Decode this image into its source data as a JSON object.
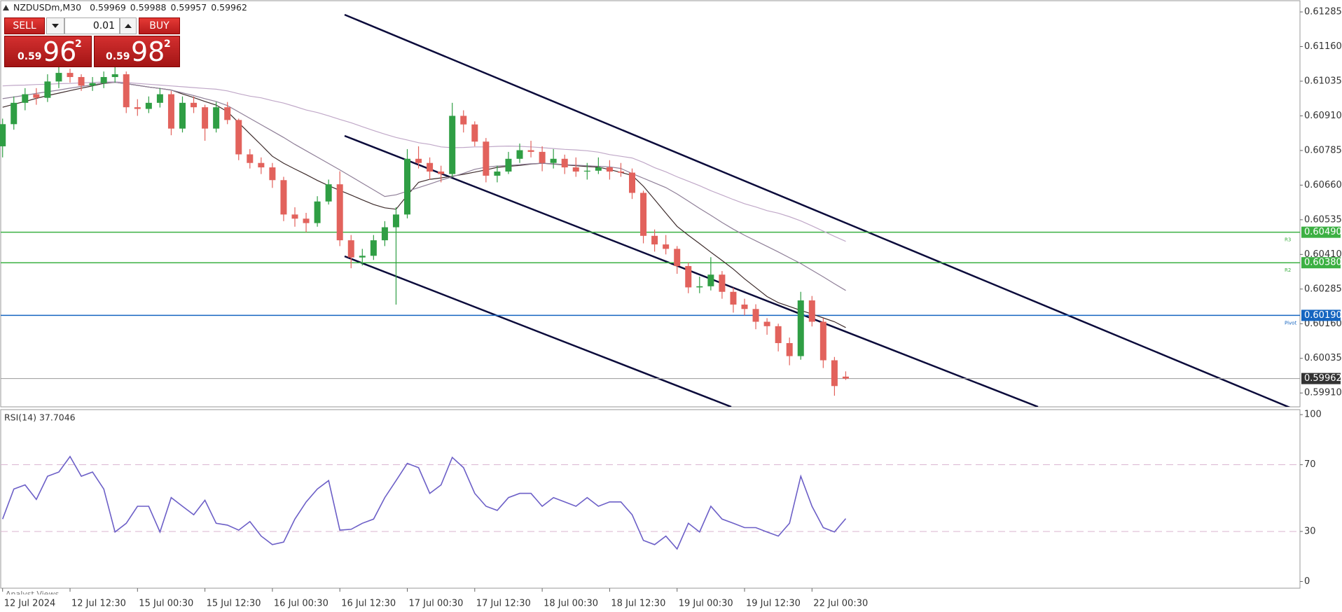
{
  "header": {
    "symbol": "NZDUSDm,M30",
    "ohlc": [
      "0.59969",
      "0.59988",
      "0.59957",
      "0.59962"
    ]
  },
  "trade_panel": {
    "sell": "SELL",
    "buy": "BUY",
    "volume": "0.01",
    "bid": {
      "lead": "0.59",
      "big": "96",
      "point": "2"
    },
    "ask": {
      "lead": "0.59",
      "big": "98",
      "point": "2"
    }
  },
  "footer_tab": "Analyst Views",
  "chart_data": [
    {
      "type": "candlestick",
      "categories": [
        "12 Jul 2024",
        null,
        null,
        null,
        null,
        null,
        "12 Jul 12:30",
        null,
        null,
        null,
        null,
        null,
        "15 Jul 00:30",
        null,
        null,
        null,
        null,
        null,
        "15 Jul 12:30",
        null,
        null,
        null,
        null,
        null,
        "16 Jul 00:30",
        null,
        null,
        null,
        null,
        null,
        "16 Jul 12:30",
        null,
        null,
        null,
        null,
        null,
        "17 Jul 00:30",
        null,
        null,
        null,
        null,
        null,
        "17 Jul 12:30",
        null,
        null,
        null,
        null,
        null,
        "18 Jul 00:30",
        null,
        null,
        null,
        null,
        null,
        "18 Jul 12:30",
        null,
        null,
        null,
        null,
        null,
        "19 Jul 00:30",
        null,
        null,
        null,
        null,
        null,
        "19 Jul 12:30",
        null,
        null,
        null,
        null,
        null,
        "22 Jul 00:30",
        null,
        null,
        null
      ],
      "ohlc": [
        [
          0.608,
          0.609,
          0.6076,
          0.6088
        ],
        [
          0.6088,
          0.6098,
          0.6086,
          0.60957
        ],
        [
          0.60957,
          0.6101,
          0.6093,
          0.60988
        ],
        [
          0.60988,
          0.6101,
          0.6095,
          0.60975
        ],
        [
          0.60975,
          0.6106,
          0.6096,
          0.61034
        ],
        [
          0.61034,
          0.6109,
          0.6101,
          0.61065
        ],
        [
          0.61065,
          0.6108,
          0.6103,
          0.6105
        ],
        [
          0.6105,
          0.6106,
          0.61,
          0.61019
        ],
        [
          0.61019,
          0.6105,
          0.61,
          0.61028
        ],
        [
          0.61028,
          0.6107,
          0.6101,
          0.6105
        ],
        [
          0.6105,
          0.611,
          0.6103,
          0.6106
        ],
        [
          0.6106,
          0.6107,
          0.6092,
          0.60941
        ],
        [
          0.60941,
          0.6097,
          0.6091,
          0.60935
        ],
        [
          0.60935,
          0.6098,
          0.6092,
          0.60957
        ],
        [
          0.60957,
          0.6101,
          0.6094,
          0.60988
        ],
        [
          0.60988,
          0.61,
          0.6084,
          0.60864
        ],
        [
          0.60864,
          0.6098,
          0.6085,
          0.60957
        ],
        [
          0.60957,
          0.6098,
          0.6092,
          0.60941
        ],
        [
          0.60941,
          0.6095,
          0.6082,
          0.60864
        ],
        [
          0.60864,
          0.6096,
          0.6085,
          0.60941
        ],
        [
          0.60941,
          0.6096,
          0.6088,
          0.60895
        ],
        [
          0.60895,
          0.609,
          0.6075,
          0.60771
        ],
        [
          0.60771,
          0.6079,
          0.6072,
          0.6074
        ],
        [
          0.6074,
          0.6076,
          0.607,
          0.60724
        ],
        [
          0.60724,
          0.6074,
          0.6065,
          0.60678
        ],
        [
          0.60678,
          0.6069,
          0.6053,
          0.60554
        ],
        [
          0.60554,
          0.6058,
          0.6051,
          0.60539
        ],
        [
          0.60539,
          0.6056,
          0.6049,
          0.60523
        ],
        [
          0.60523,
          0.6062,
          0.6051,
          0.60601
        ],
        [
          0.60601,
          0.6068,
          0.6059,
          0.60663
        ],
        [
          0.60663,
          0.6071,
          0.6044,
          0.60461
        ],
        [
          0.60461,
          0.6048,
          0.6036,
          0.60399
        ],
        [
          0.60399,
          0.6043,
          0.6037,
          0.60405
        ],
        [
          0.60405,
          0.6048,
          0.6039,
          0.60461
        ],
        [
          0.60461,
          0.6053,
          0.6044,
          0.60508
        ],
        [
          0.60508,
          0.6058,
          0.60229,
          0.60554
        ],
        [
          0.60554,
          0.6079,
          0.6054,
          0.60755
        ],
        [
          0.60755,
          0.608,
          0.6072,
          0.6074
        ],
        [
          0.6074,
          0.6076,
          0.6068,
          0.60709
        ],
        [
          0.60709,
          0.6073,
          0.6067,
          0.607
        ],
        [
          0.607,
          0.60957,
          0.6069,
          0.6091
        ],
        [
          0.6091,
          0.6093,
          0.6085,
          0.60879
        ],
        [
          0.60879,
          0.6089,
          0.608,
          0.60817
        ],
        [
          0.60817,
          0.6083,
          0.6067,
          0.60694
        ],
        [
          0.60694,
          0.6073,
          0.6067,
          0.60709
        ],
        [
          0.60709,
          0.6078,
          0.607,
          0.60755
        ],
        [
          0.60755,
          0.6081,
          0.6074,
          0.60786
        ],
        [
          0.60786,
          0.6082,
          0.6076,
          0.6078
        ],
        [
          0.6078,
          0.608,
          0.6071,
          0.6074
        ],
        [
          0.6074,
          0.6079,
          0.6072,
          0.60755
        ],
        [
          0.60755,
          0.6077,
          0.607,
          0.60724
        ],
        [
          0.60724,
          0.6076,
          0.6069,
          0.60709
        ],
        [
          0.60709,
          0.6074,
          0.6068,
          0.60712
        ],
        [
          0.60712,
          0.6076,
          0.607,
          0.60724
        ],
        [
          0.60724,
          0.6075,
          0.6068,
          0.60709
        ],
        [
          0.60709,
          0.6074,
          0.6069,
          0.60705
        ],
        [
          0.60705,
          0.6072,
          0.6061,
          0.60632
        ],
        [
          0.60632,
          0.6064,
          0.6045,
          0.60477
        ],
        [
          0.60477,
          0.605,
          0.6042,
          0.60446
        ],
        [
          0.60446,
          0.6048,
          0.6041,
          0.6043
        ],
        [
          0.6043,
          0.6044,
          0.6034,
          0.60368
        ],
        [
          0.60368,
          0.6038,
          0.6027,
          0.60291
        ],
        [
          0.60291,
          0.6033,
          0.6027,
          0.60295
        ],
        [
          0.60295,
          0.604,
          0.6028,
          0.60337
        ],
        [
          0.60337,
          0.6035,
          0.6025,
          0.60275
        ],
        [
          0.60275,
          0.6029,
          0.602,
          0.60229
        ],
        [
          0.60229,
          0.6025,
          0.6019,
          0.60213
        ],
        [
          0.60213,
          0.6023,
          0.6014,
          0.60167
        ],
        [
          0.60167,
          0.6018,
          0.6012,
          0.60151
        ],
        [
          0.60151,
          0.6016,
          0.6006,
          0.6009
        ],
        [
          0.6009,
          0.6011,
          0.6001,
          0.60043
        ],
        [
          0.60043,
          0.60275,
          0.6003,
          0.60244
        ],
        [
          0.60244,
          0.6026,
          0.6015,
          0.60167
        ],
        [
          0.60167,
          0.6018,
          0.6,
          0.60028
        ],
        [
          0.60028,
          0.6004,
          0.599,
          0.59935
        ],
        [
          0.59969,
          0.59988,
          0.59957,
          0.59962
        ]
      ],
      "up_color": "#2f9e44",
      "down_color": "#e2625c",
      "ylim": [
        0.5986,
        0.61328
      ],
      "yticks": [
        0.61285,
        {
          "value": 0.6116,
          "label": "0.61160"
        },
        0.61035,
        {
          "value": 0.6091,
          "label": "0.60910"
        },
        0.60785,
        {
          "value": 0.6066,
          "label": "0.60660"
        },
        0.60535,
        {
          "value": 0.6041,
          "label": "0.60410"
        },
        0.60285,
        {
          "value": 0.6016,
          "label": "0.60160"
        },
        0.60035,
        {
          "value": 0.5991,
          "label": "0.59910"
        }
      ],
      "series": [
        {
          "color": "#3d2b2b",
          "values": [
            0.60941,
            0.60952,
            0.60962,
            0.60973,
            0.60983,
            0.60992,
            0.61001,
            0.6101,
            0.61018,
            0.61027,
            0.61031,
            0.61026,
            0.6102,
            0.61014,
            0.61009,
            0.61003,
            0.60989,
            0.60976,
            0.60962,
            0.60949,
            0.60925,
            0.60885,
            0.60845,
            0.60805,
            0.60764,
            0.60739,
            0.60718,
            0.60698,
            0.60677,
            0.60658,
            0.60641,
            0.60624,
            0.60607,
            0.6059,
            0.60578,
            0.60573,
            0.60623,
            0.6067,
            0.60681,
            0.60686,
            0.60692,
            0.60699,
            0.60707,
            0.60715,
            0.60724,
            0.60728,
            0.60731,
            0.60736,
            0.60739,
            0.60736,
            0.60733,
            0.6073,
            0.60727,
            0.60725,
            0.60716,
            0.60706,
            0.60695,
            0.60656,
            0.60608,
            0.60559,
            0.60511,
            0.60479,
            0.60449,
            0.60418,
            0.60388,
            0.60357,
            0.60322,
            0.6029,
            0.60258,
            0.60236,
            0.60222,
            0.60208,
            0.60195,
            0.60181,
            0.60167,
            0.60146
          ]
        },
        {
          "color": "#8f7f98",
          "values": [
            0.60972,
            0.60978,
            0.60984,
            0.60991,
            0.60997,
            0.61003,
            0.6101,
            0.61016,
            0.61022,
            0.61029,
            0.61031,
            0.61026,
            0.6102,
            0.61014,
            0.61009,
            0.61003,
            0.60993,
            0.60983,
            0.60972,
            0.60962,
            0.60947,
            0.60924,
            0.60901,
            0.60878,
            0.60855,
            0.60832,
            0.60807,
            0.60784,
            0.60761,
            0.60738,
            0.60715,
            0.60691,
            0.60667,
            0.60643,
            0.60619,
            0.60625,
            0.60638,
            0.60651,
            0.60664,
            0.60678,
            0.6069,
            0.60703,
            0.60717,
            0.60725,
            0.60729,
            0.60731,
            0.60734,
            0.60737,
            0.60739,
            0.60737,
            0.60734,
            0.60732,
            0.6073,
            0.60728,
            0.60726,
            0.6072,
            0.60702,
            0.60685,
            0.60668,
            0.60651,
            0.60628,
            0.60602,
            0.60576,
            0.60551,
            0.60525,
            0.60501,
            0.60479,
            0.60459,
            0.60439,
            0.60419,
            0.60398,
            0.60377,
            0.60353,
            0.60329,
            0.60304,
            0.6028
          ]
        },
        {
          "color": "#c0a8c8",
          "values": [
            0.61018,
            0.6102,
            0.61021,
            0.61023,
            0.61024,
            0.61026,
            0.61027,
            0.61029,
            0.6103,
            0.61032,
            0.61033,
            0.6103,
            0.61027,
            0.61024,
            0.61021,
            0.61018,
            0.61015,
            0.61012,
            0.61009,
            0.61006,
            0.61,
            0.6099,
            0.60981,
            0.60975,
            0.60965,
            0.60956,
            0.60944,
            0.60931,
            0.60922,
            0.6091,
            0.60897,
            0.60885,
            0.60871,
            0.60857,
            0.60844,
            0.60832,
            0.60823,
            0.60813,
            0.60807,
            0.60798,
            0.60795,
            0.60796,
            0.60798,
            0.60798,
            0.608,
            0.60801,
            0.608,
            0.60798,
            0.60795,
            0.60792,
            0.60789,
            0.60787,
            0.60784,
            0.60779,
            0.6077,
            0.60764,
            0.60758,
            0.60742,
            0.60723,
            0.60708,
            0.6069,
            0.60674,
            0.60658,
            0.6064,
            0.60624,
            0.60608,
            0.60593,
            0.60581,
            0.60568,
            0.60559,
            0.60546,
            0.60531,
            0.60513,
            0.60494,
            0.60475,
            0.60457
          ]
        }
      ],
      "levels": [
        {
          "value": 0.6049,
          "label": "0.60490",
          "color": "#3cb043",
          "tag": "R3"
        },
        {
          "value": 0.6038,
          "label": "0.60380",
          "color": "#3cb043",
          "tag": "R2"
        },
        {
          "value": 0.6019,
          "label": "0.60190",
          "color": "#1565c0",
          "tag": "Pivot"
        }
      ],
      "price_line": {
        "value": 0.59962,
        "label": "0.59962",
        "color": "#9a9a9a"
      }
    },
    {
      "type": "line",
      "title": "RSI(14) 37.7046",
      "color": "#6c5fc7",
      "values": [
        37.4,
        55.4,
        57.9,
        49.2,
        63.1,
        65.6,
        74.9,
        63.1,
        65.6,
        55.4,
        29.7,
        34.9,
        45.1,
        45.1,
        29.7,
        50.3,
        45.1,
        40.0,
        48.7,
        34.9,
        33.8,
        30.8,
        35.9,
        27.2,
        22.1,
        23.6,
        37.4,
        47.7,
        55.4,
        60.5,
        30.8,
        31.3,
        34.9,
        37.4,
        50.3,
        60.5,
        70.8,
        68.2,
        52.8,
        57.9,
        74.4,
        68.2,
        52.8,
        45.1,
        42.6,
        50.3,
        52.8,
        52.8,
        45.1,
        50.3,
        47.7,
        45.1,
        50.3,
        45.1,
        47.7,
        47.7,
        40.0,
        24.6,
        22.1,
        27.2,
        19.5,
        34.9,
        29.7,
        45.1,
        37.4,
        34.9,
        32.3,
        32.3,
        29.7,
        27.2,
        34.9,
        63.1,
        45.1,
        32.3,
        29.7,
        37.7
      ],
      "ylim": [
        -4,
        103
      ],
      "yticks": [
        100,
        70,
        30,
        0
      ],
      "levels": [
        70,
        30
      ],
      "level_color": "#d9b3cf"
    }
  ]
}
